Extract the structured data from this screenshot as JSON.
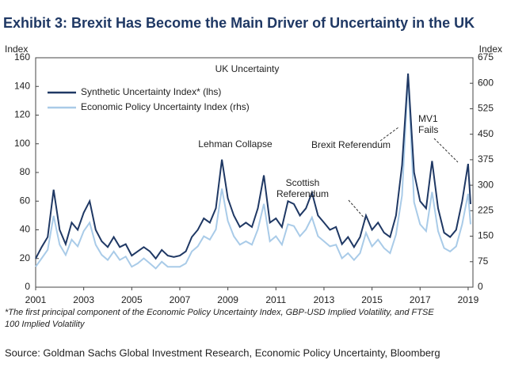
{
  "chart_data": {
    "type": "line",
    "title": "Exhibit 3: Brexit Has Become the Main Driver of Uncertainty in the UK",
    "ylabel": "Index",
    "y2label": "Index",
    "subtitle": "UK Uncertainty",
    "annotations": [
      "Lehman Collapse",
      "Scottish",
      "Referendum",
      "Brexit Referendum",
      "MV1",
      "Fails"
    ],
    "footnote": [
      "*The first principal component of the Economic Policy Uncertainty Index, GBP-USD Implied Volatility, and FTSE",
      "100 Implied Volatility"
    ],
    "source": "Source: Goldman Sachs Global Investment Research, Economic Policy Uncertainty, Bloomberg",
    "x": [
      2001,
      2001.25,
      2001.5,
      2001.75,
      2002,
      2002.25,
      2002.5,
      2002.75,
      2003,
      2003.25,
      2003.5,
      2003.75,
      2004,
      2004.25,
      2004.5,
      2004.75,
      2005,
      2005.25,
      2005.5,
      2005.75,
      2006,
      2006.25,
      2006.5,
      2006.75,
      2007,
      2007.25,
      2007.5,
      2007.75,
      2008,
      2008.25,
      2008.5,
      2008.75,
      2009,
      2009.25,
      2009.5,
      2009.75,
      2010,
      2010.25,
      2010.5,
      2010.75,
      2011,
      2011.25,
      2011.5,
      2011.75,
      2012,
      2012.25,
      2012.5,
      2012.75,
      2013,
      2013.25,
      2013.5,
      2013.75,
      2014,
      2014.25,
      2014.5,
      2014.75,
      2015,
      2015.25,
      2015.5,
      2015.75,
      2016,
      2016.25,
      2016.5,
      2016.75,
      2017,
      2017.25,
      2017.5,
      2017.75,
      2018,
      2018.25,
      2018.5,
      2018.75,
      2019,
      2019.1
    ],
    "series": [
      {
        "name": "Synthetic Uncertainty Index* (lhs)",
        "color": "#1f3864",
        "axis": "y",
        "values": [
          20,
          28,
          35,
          68,
          40,
          30,
          45,
          40,
          52,
          60,
          40,
          32,
          28,
          35,
          28,
          30,
          22,
          25,
          28,
          25,
          20,
          26,
          22,
          21,
          22,
          25,
          35,
          40,
          48,
          45,
          55,
          89,
          62,
          50,
          42,
          45,
          42,
          55,
          78,
          45,
          48,
          42,
          60,
          58,
          50,
          55,
          66,
          50,
          45,
          40,
          42,
          30,
          35,
          28,
          35,
          50,
          40,
          45,
          38,
          35,
          50,
          85,
          149,
          80,
          60,
          55,
          88,
          55,
          38,
          35,
          40,
          60,
          86,
          58
        ]
      },
      {
        "name": "Economic Policy Uncertainty Index (rhs)",
        "color": "#a9cbe8",
        "axis": "y2",
        "values": [
          60,
          85,
          110,
          210,
          125,
          95,
          140,
          120,
          165,
          190,
          125,
          95,
          80,
          105,
          80,
          90,
          60,
          70,
          85,
          70,
          55,
          75,
          60,
          60,
          60,
          70,
          105,
          120,
          150,
          140,
          170,
          290,
          195,
          150,
          125,
          135,
          125,
          170,
          245,
          135,
          150,
          125,
          185,
          180,
          150,
          170,
          205,
          150,
          135,
          120,
          125,
          85,
          100,
          80,
          100,
          160,
          120,
          140,
          115,
          100,
          155,
          270,
          620,
          250,
          185,
          165,
          280,
          165,
          115,
          105,
          120,
          185,
          275,
          185
        ]
      }
    ],
    "xlim": [
      2001,
      2019.2
    ],
    "xticks": [
      2001,
      2003,
      2005,
      2007,
      2009,
      2011,
      2013,
      2015,
      2017,
      2019
    ],
    "ylim": [
      0,
      160
    ],
    "yticks": [
      0,
      20,
      40,
      60,
      80,
      100,
      120,
      140,
      160
    ],
    "y2lim": [
      0,
      675
    ],
    "y2ticks": [
      0,
      75,
      150,
      225,
      300,
      375,
      450,
      525,
      600,
      675
    ]
  }
}
